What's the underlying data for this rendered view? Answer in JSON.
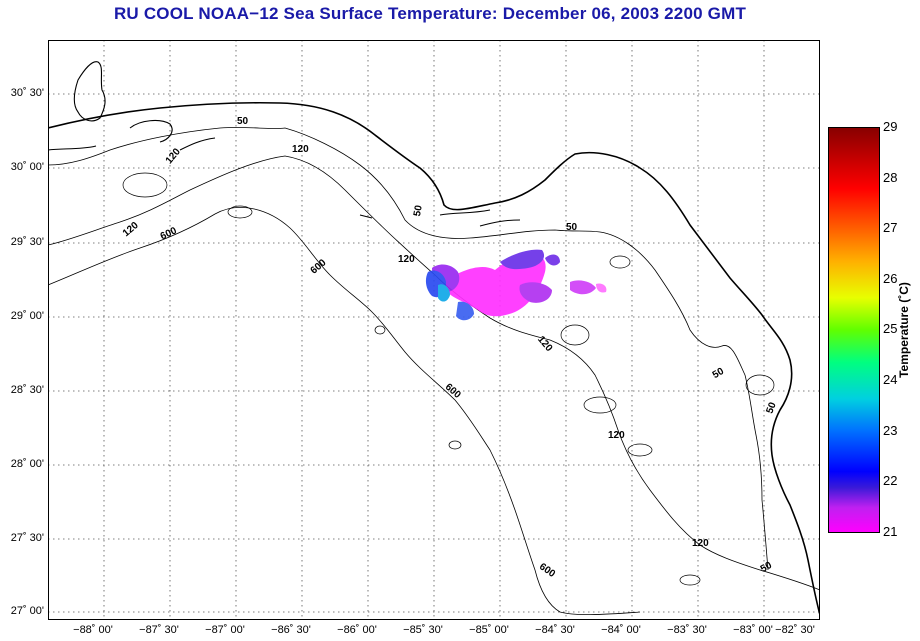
{
  "title": "RU COOL  NOAA−12  Sea Surface Temperature:  December 06, 2003 2200 GMT",
  "lat_labels": [
    "30˚ 30'",
    "30˚ 00'",
    "29˚ 30'",
    "29˚ 00'",
    "28˚ 30'",
    "28˚ 00'",
    "27˚ 30'",
    "27˚ 00'"
  ],
  "lon_labels": [
    "−88˚ 00'",
    "−87˚ 30'",
    "−87˚ 00'",
    "−86˚ 30'",
    "−86˚ 00'",
    "−85˚ 30'",
    "−85˚ 00'",
    "−84˚ 30'",
    "−84˚ 00'",
    "−83˚ 30'",
    "−83˚ 00'",
    "−82˚ 30'"
  ],
  "contour_labels": [
    "50",
    "120",
    "120",
    "120",
    "600",
    "50",
    "120",
    "600",
    "50",
    "120",
    "600",
    "50",
    "120",
    "50",
    "600",
    "120",
    "50"
  ],
  "colorbar": {
    "title": "Temperature (˚C)",
    "min": 21,
    "max": 29,
    "ticks": [
      "29",
      "28",
      "27",
      "26",
      "25",
      "24",
      "23",
      "22",
      "21"
    ]
  },
  "colors": {
    "title": "#1a1aa8",
    "land": "#ffffff",
    "water": "#ffffff"
  }
}
